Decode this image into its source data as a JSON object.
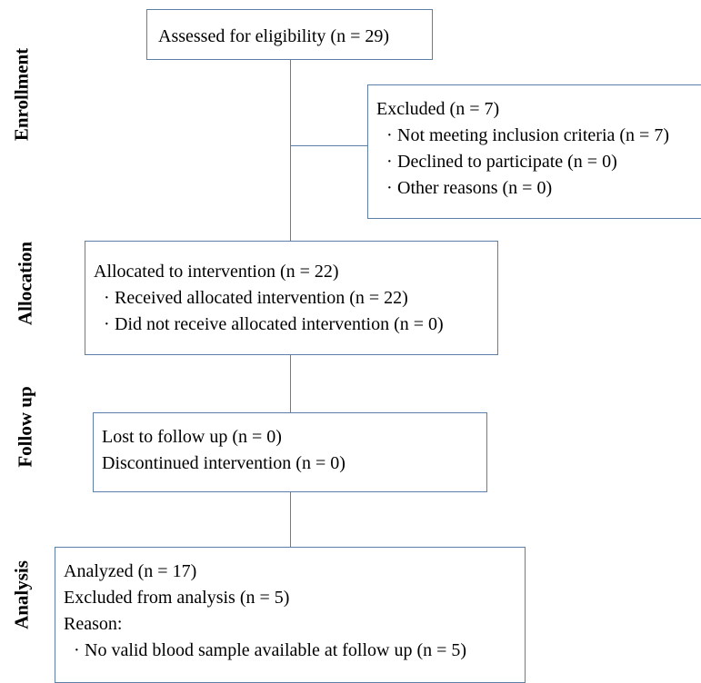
{
  "phases": {
    "enrollment": "Enrollment",
    "allocation": "Allocation",
    "follow_up": "Follow up",
    "analysis": "Analysis"
  },
  "eligibility": {
    "text": "Assessed for eligibility  (n = 29)"
  },
  "excluded": {
    "title": "Excluded (n = 7)",
    "items": [
      "Not meeting inclusion criteria (n = 7)",
      "Declined to participate (n = 0)",
      "Other reasons (n = 0)"
    ]
  },
  "allocation": {
    "title": "Allocated to intervention (n = 22)",
    "items": [
      "Received allocated intervention (n = 22)",
      "Did not receive allocated intervention (n = 0)"
    ]
  },
  "follow_up": {
    "lines": [
      "Lost to follow up (n = 0)",
      "Discontinued intervention (n = 0)"
    ]
  },
  "analysis": {
    "lines": [
      "Analyzed (n = 17)",
      "Excluded from analysis (n = 5)",
      "Reason:"
    ],
    "items": [
      "No valid blood sample available at follow up (n = 5)"
    ]
  },
  "colors": {
    "border": "#5b7fa6",
    "text": "#000000"
  }
}
